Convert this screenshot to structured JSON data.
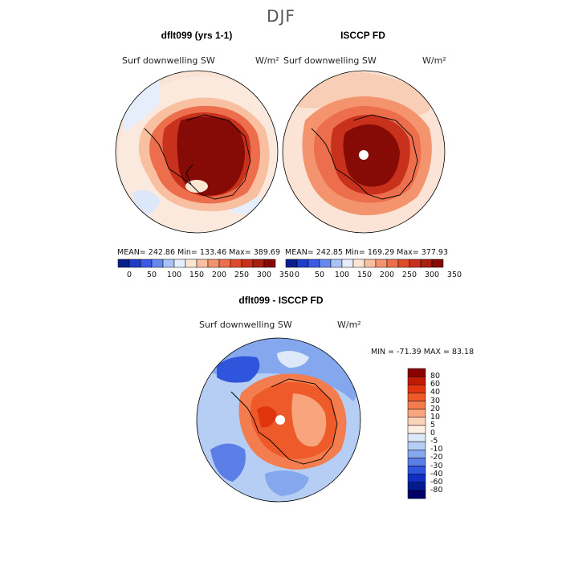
{
  "figure": {
    "title": "DJF",
    "var_label": "Surf downwelling SW",
    "units": "W/m²"
  },
  "panels": {
    "left": {
      "title": "dflt099 (yrs 1-1)",
      "stats": {
        "mean": "242.86",
        "min": "133.46",
        "max": "389.69"
      },
      "stats_text": "MEAN= 242.86   Min= 133.46   Max= 389.69"
    },
    "right": {
      "title": "ISCCP FD",
      "stats": {
        "mean": "242.85",
        "min": "169.29",
        "max": "377.93"
      },
      "stats_text": "MEAN= 242.85   Min= 169.29   Max= 377.93"
    },
    "diff": {
      "title": "dflt099 - ISCCP FD",
      "stats": {
        "min": "-71.39",
        "max": "83.18"
      },
      "stats_text": "MIN = -71.39  MAX =  83.18"
    }
  },
  "colorbars": {
    "top": {
      "ticks": [
        "0",
        "50",
        "100",
        "150",
        "200",
        "250",
        "300",
        "350"
      ],
      "colors": [
        "#0a1e8c",
        "#1f3cc8",
        "#3a5ae6",
        "#6688f0",
        "#a9c3f5",
        "#e5eefa",
        "#fde5d3",
        "#f8bfa0",
        "#f4946e",
        "#ec6e4c",
        "#e04a2a",
        "#c8321c",
        "#a8200f",
        "#860a05"
      ]
    },
    "diff": {
      "ticks": [
        "80",
        "60",
        "40",
        "30",
        "20",
        "10",
        "5",
        "0",
        "-5",
        "-10",
        "-20",
        "-30",
        "-40",
        "-60",
        "-80"
      ],
      "colors": [
        "#8b0000",
        "#c01a05",
        "#e0350f",
        "#ef5a2a",
        "#f47d4f",
        "#f8a47c",
        "#fcd2b9",
        "#fdeee2",
        "#dde8f8",
        "#b6cdf4",
        "#85a7ee",
        "#5b7fe6",
        "#2f55dc",
        "#0f2fc0",
        "#041a90",
        "#000066"
      ]
    }
  },
  "chart_data": [
    {
      "type": "heatmap",
      "title": "dflt099 (yrs 1-1)",
      "variable": "Surf downwelling SW",
      "units": "W/m²",
      "season": "DJF",
      "projection": "south polar stereographic",
      "summary": {
        "mean": 242.86,
        "min": 133.46,
        "max": 389.69
      },
      "colorbar_ticks": [
        0,
        50,
        100,
        150,
        200,
        250,
        300,
        350
      ]
    },
    {
      "type": "heatmap",
      "title": "ISCCP FD",
      "variable": "Surf downwelling SW",
      "units": "W/m²",
      "season": "DJF",
      "projection": "south polar stereographic",
      "summary": {
        "mean": 242.85,
        "min": 169.29,
        "max": 377.93
      },
      "colorbar_ticks": [
        0,
        50,
        100,
        150,
        200,
        250,
        300,
        350
      ]
    },
    {
      "type": "heatmap",
      "title": "dflt099 - ISCCP FD",
      "variable": "Surf downwelling SW",
      "units": "W/m²",
      "season": "DJF",
      "projection": "south polar stereographic",
      "summary": {
        "min": -71.39,
        "max": 83.18
      },
      "colorbar_ticks": [
        80,
        60,
        40,
        30,
        20,
        10,
        5,
        0,
        -5,
        -10,
        -20,
        -30,
        -40,
        -60,
        -80
      ]
    }
  ]
}
